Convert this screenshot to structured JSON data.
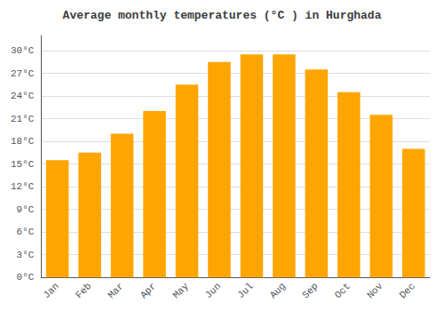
{
  "chart_data": {
    "type": "bar",
    "title": "Average monthly temperatures (°C ) in Hurghada",
    "categories": [
      "Jan",
      "Feb",
      "Mar",
      "Apr",
      "May",
      "Jun",
      "Jul",
      "Aug",
      "Sep",
      "Oct",
      "Nov",
      "Dec"
    ],
    "values": [
      15.5,
      16.5,
      19.0,
      22.0,
      25.5,
      28.5,
      29.5,
      29.5,
      27.5,
      24.5,
      21.5,
      17.0
    ],
    "color": "#FFA500",
    "ylim": [
      0,
      32
    ],
    "yticks": [
      {
        "value": 0,
        "label": "0°C"
      },
      {
        "value": 3,
        "label": "3°C"
      },
      {
        "value": 6,
        "label": "6°C"
      },
      {
        "value": 9,
        "label": "9°C"
      },
      {
        "value": 12,
        "label": "12°C"
      },
      {
        "value": 15,
        "label": "15°C"
      },
      {
        "value": 18,
        "label": "18°C"
      },
      {
        "value": 21,
        "label": "21°C"
      },
      {
        "value": 24,
        "label": "24°C"
      },
      {
        "value": 27,
        "label": "27°C"
      },
      {
        "value": 30,
        "label": "30°C"
      }
    ],
    "grid": true
  }
}
